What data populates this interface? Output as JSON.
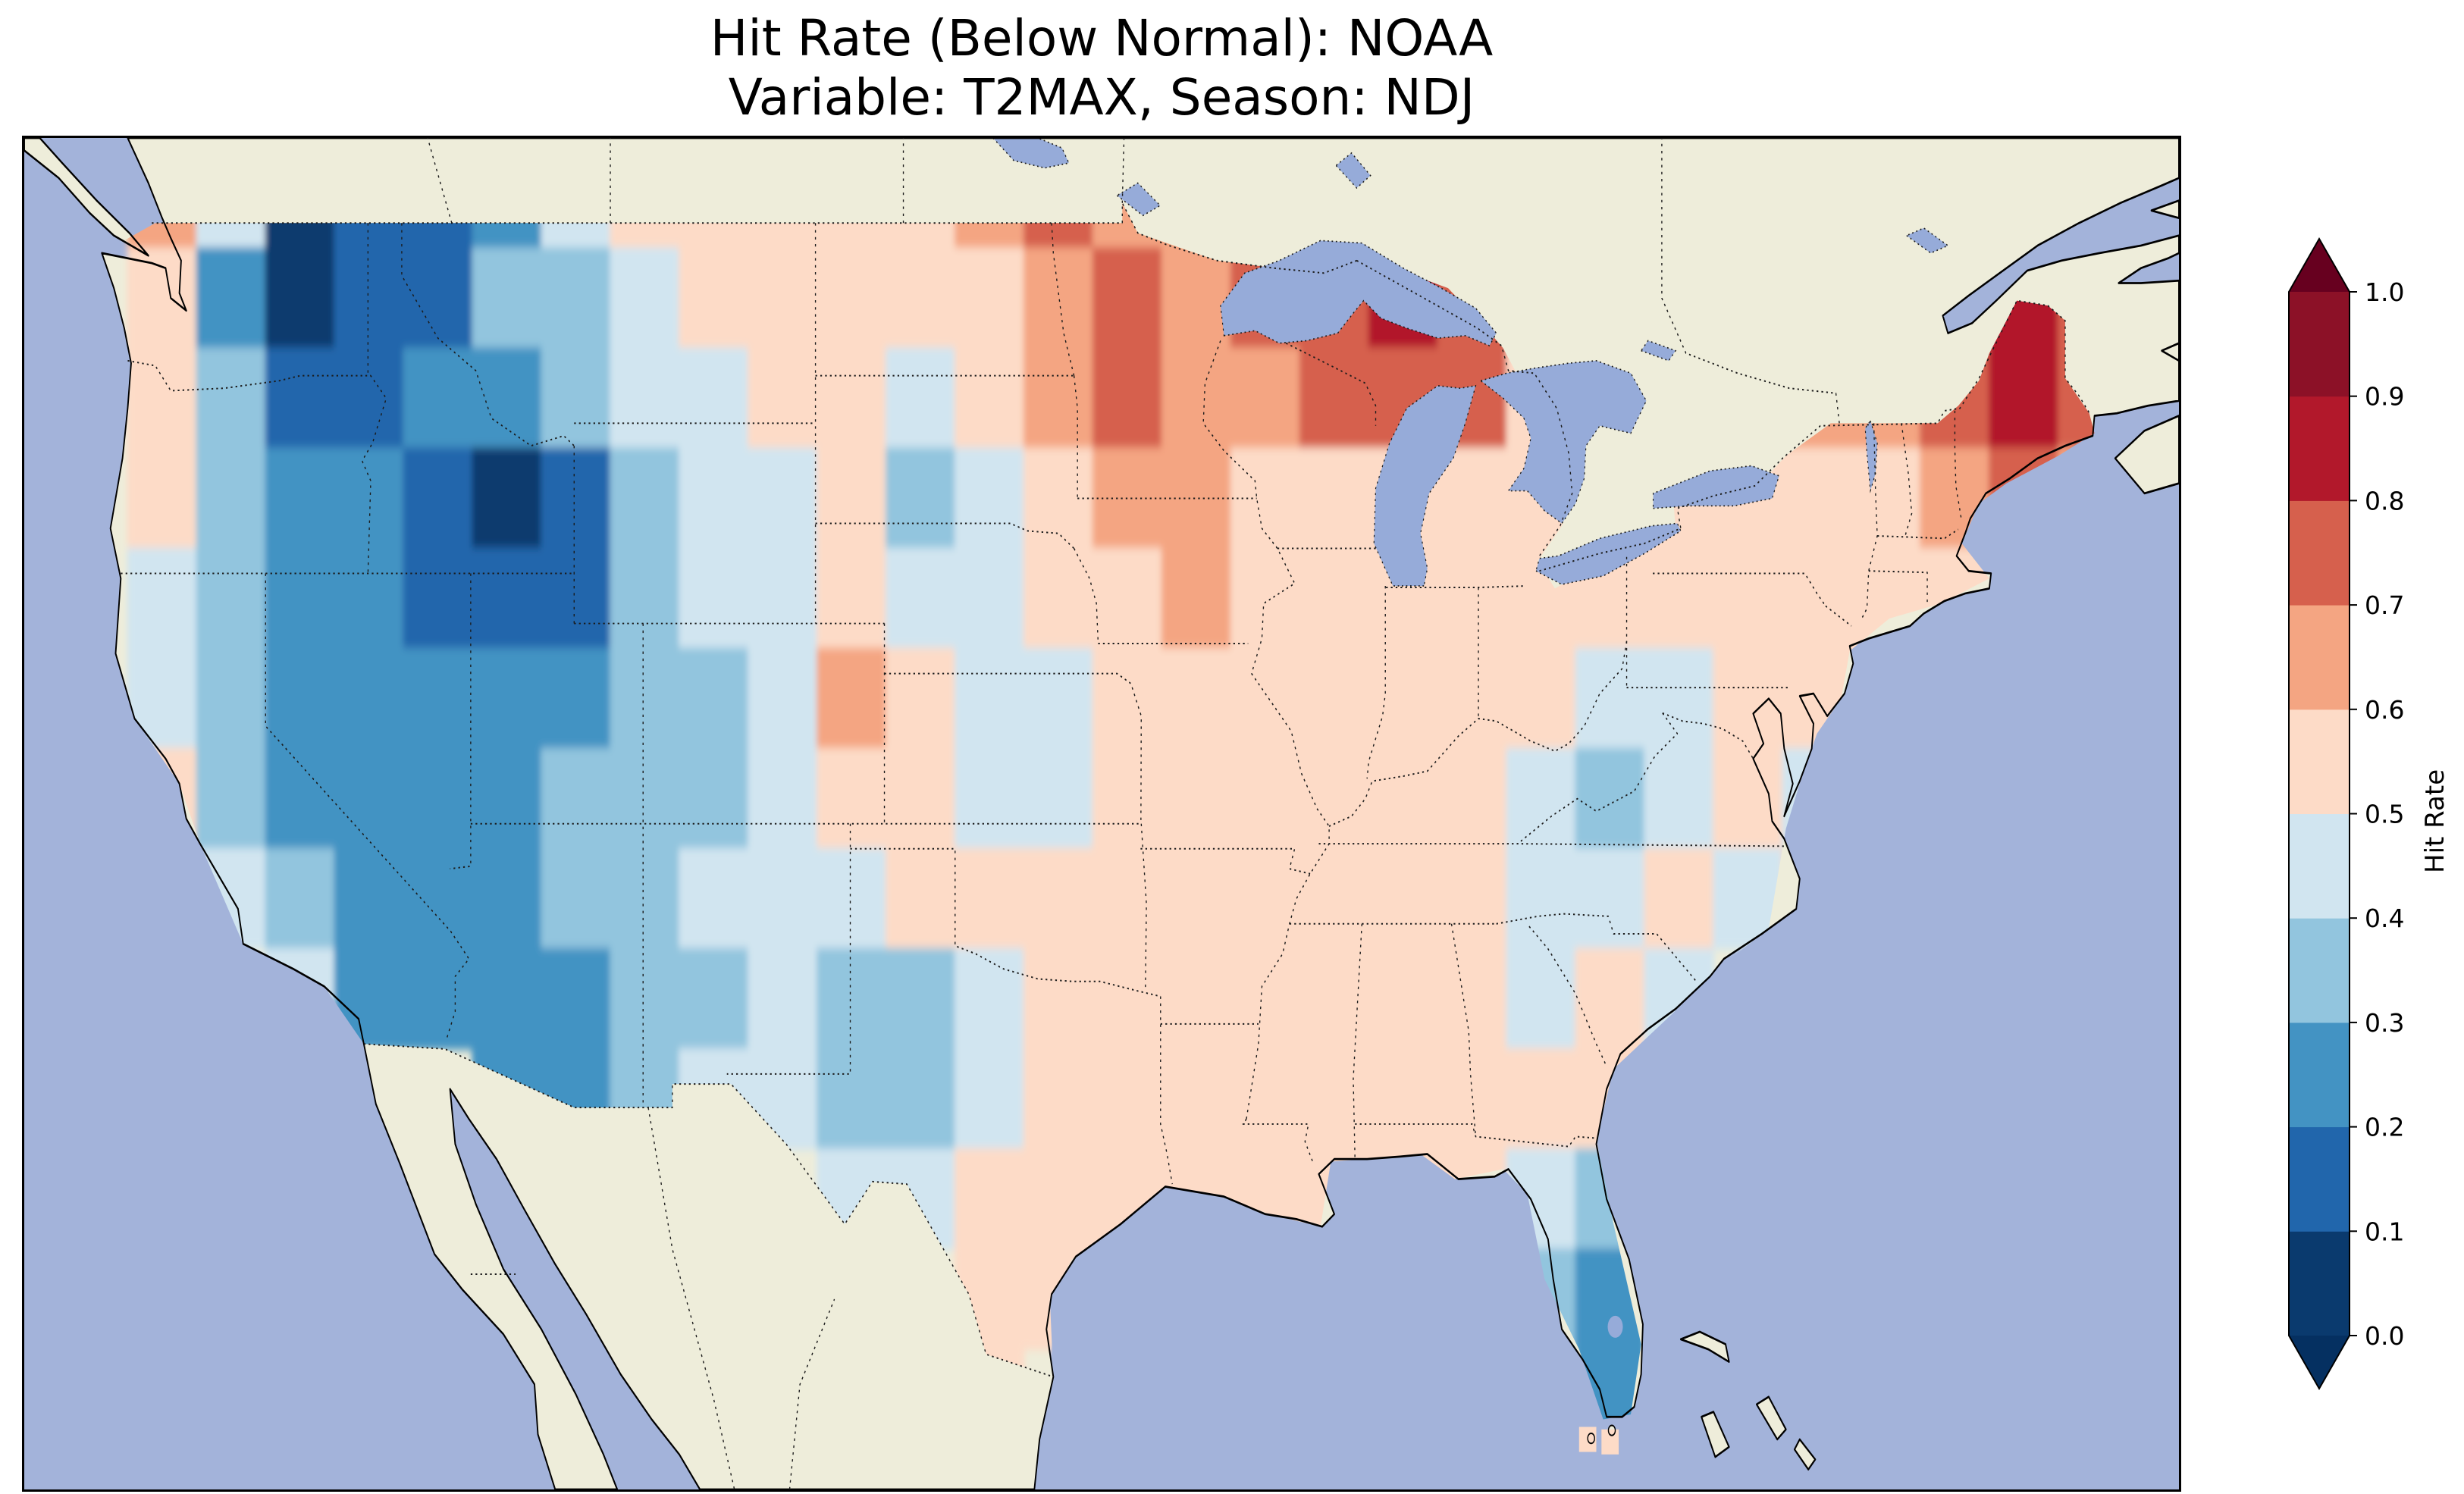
{
  "title": {
    "line1": "Hit Rate (Below Normal): NOAA",
    "line2": "Variable: T2MAX, Season: NDJ"
  },
  "colorbar": {
    "label": "Hit Rate",
    "ticks": [
      "1.0",
      "0.9",
      "0.8",
      "0.7",
      "0.6",
      "0.5",
      "0.4",
      "0.3",
      "0.2",
      "0.1",
      "0.0"
    ],
    "bin_colors": [
      "#0a3a6e",
      "#2166ac",
      "#4393c3",
      "#92c5de",
      "#d1e5f0",
      "#fddbc7",
      "#f4a582",
      "#d6604d",
      "#b2182b",
      "#8c1127"
    ],
    "under_color": "#053061",
    "over_color": "#67001f"
  },
  "map": {
    "colors": {
      "ocean": "#a3b3da",
      "land": "#eeedda",
      "lake": "#96abd9",
      "coast": "#000000",
      "border": "#1b1b1b"
    },
    "extent": {
      "lon_min": -127,
      "lon_max": -64.5,
      "lat_min": 23.7,
      "lat_max": 50.7
    }
  },
  "chart_data": {
    "type": "heatmap",
    "title": "Hit Rate (Below Normal): NOAA",
    "subtitle": "Variable: T2MAX, Season: NDJ",
    "source_label": "NOAA",
    "variable": "T2MAX",
    "season": "NDJ",
    "colorbar_label": "Hit Rate",
    "value_range": [
      0.0,
      1.0
    ],
    "bin_edges": [
      0.0,
      0.1,
      0.2,
      0.3,
      0.4,
      0.5,
      0.6,
      0.7,
      0.8,
      0.9,
      1.0
    ],
    "grid": {
      "description": "Approximate 2x2 degree downsampling of plotted hit-rate field over CONUS; chars 0-9 map to bins (0 = 0.0-0.1 ... 9 = 0.9-1.0), '.' = no data",
      "lon_min": -126,
      "dlon": 2,
      "lat_max": 50.5,
      "dlat": 2,
      "rows": [
        ".6401124555556766.............",
        ".52011334555556767787.......87",
        ".531122344554567667775...66787",
        ".532210134453456655555.5555676",
        ".4322111344544556555555555555.",
        ".43222223346544555555544555...",
        ".5322223334554455555543454....",
        "..432223344455555555544545....",
        "...422223343345555555454......",
        "......22344334555555555.......",
        "...........445555555543.......",
        ".............55......32.......",
        ".............5........2......."
      ]
    },
    "extra_cells": [
      {
        "lon": -81.9,
        "lat": 24.95,
        "size": 0.5,
        "v": 5
      },
      {
        "lon": -81.25,
        "lat": 24.9,
        "size": 0.5,
        "v": 5
      }
    ],
    "regional_values_approx": [
      {
        "region": "NE Washington / N Idaho",
        "hit_rate": 0.05
      },
      {
        "region": "SE Idaho / N Utah",
        "hit_rate": 0.05
      },
      {
        "region": "Great Basin (NV, UT, AZ, W CO)",
        "hit_rate": 0.25
      },
      {
        "region": "California coast",
        "hit_rate": 0.45
      },
      {
        "region": "Montana / N Rockies",
        "hit_rate": 0.35
      },
      {
        "region": "Central Plains (NE, KS)",
        "hit_rate": 0.45
      },
      {
        "region": "West Texas / E New Mexico",
        "hit_rate": 0.3
      },
      {
        "region": "Upper Midwest (MN, WI, N MI)",
        "hit_rate": 0.75
      },
      {
        "region": "Great Lakes shoreline belt",
        "hit_rate": 0.8
      },
      {
        "region": "Maine / N New England",
        "hit_rate": 0.8
      },
      {
        "region": "Eastern & Southeastern US (general)",
        "hit_rate": 0.55
      },
      {
        "region": "Central Appalachians (WV/VA)",
        "hit_rate": 0.35
      },
      {
        "region": "Florida peninsula",
        "hit_rate": 0.25
      }
    ],
    "legend_position": "right",
    "grid_lines": false
  }
}
